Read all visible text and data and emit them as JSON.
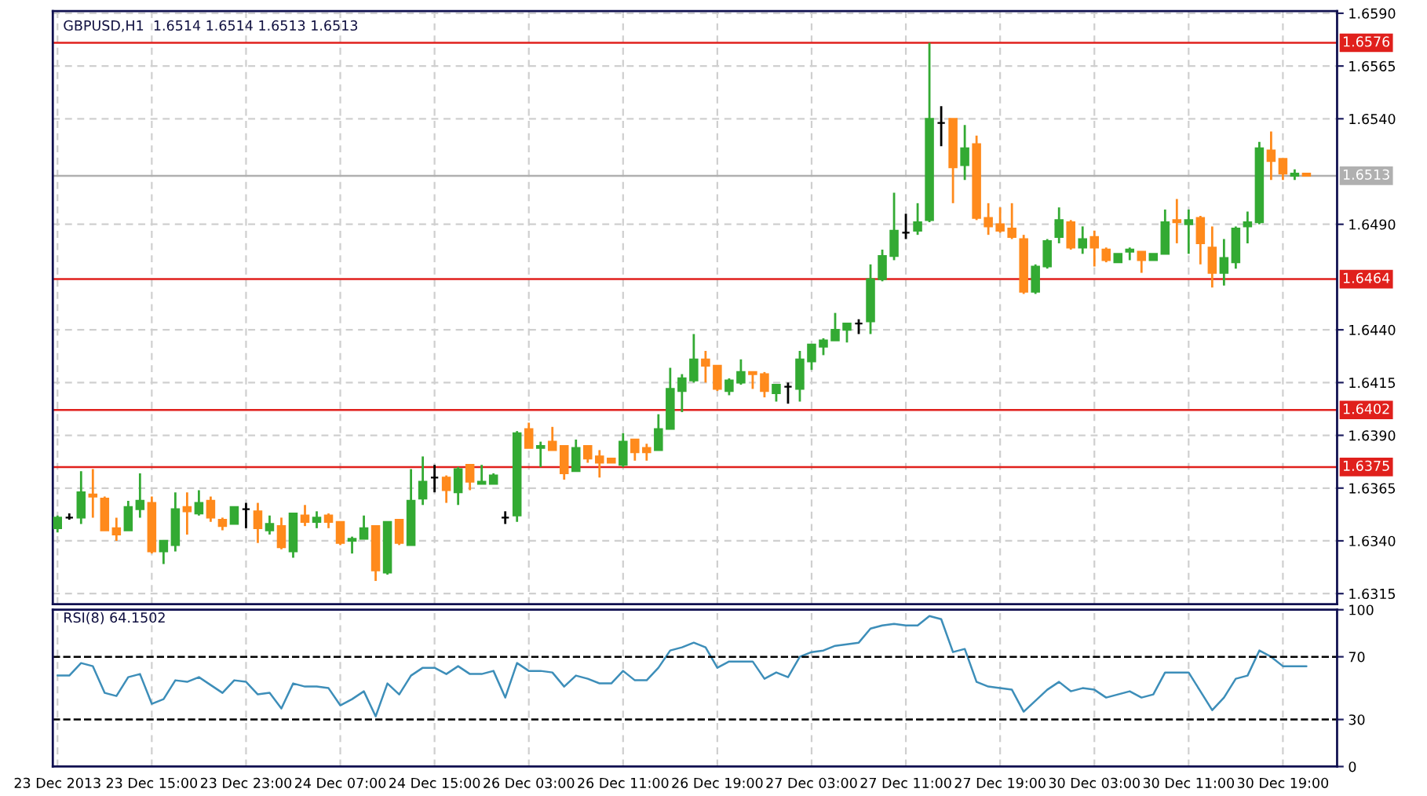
{
  "chart_data": [
    {
      "type": "candlestick",
      "title": "GBPUSD,H1  1.6514 1.6514 1.6513 1.6513",
      "categories": [
        null,
        null,
        null,
        null,
        null,
        null,
        null,
        null,
        null,
        null,
        null,
        null,
        null,
        null,
        null,
        null,
        null,
        null,
        null,
        null,
        null,
        null,
        null,
        null,
        null,
        null,
        null,
        null,
        null,
        null,
        null,
        null,
        null,
        null,
        null,
        null,
        null,
        null,
        null,
        null,
        null,
        null,
        null,
        null,
        null,
        null,
        null,
        null,
        null,
        null,
        null,
        null,
        null,
        null,
        null,
        null,
        null,
        null,
        null,
        null,
        null,
        null,
        null,
        null,
        null,
        null,
        null,
        null,
        null,
        null,
        null,
        null,
        null,
        null,
        null,
        null,
        null,
        null,
        null,
        null,
        null,
        null,
        null,
        null,
        null,
        null,
        null,
        null,
        null,
        null,
        null,
        null,
        null,
        null,
        null,
        null,
        null,
        null,
        null,
        null,
        null,
        null,
        null,
        null,
        null,
        null,
        null
      ],
      "ohlc": [
        [
          1.6346,
          1.6352,
          1.6344,
          1.6351
        ],
        [
          1.6351,
          1.6353,
          1.635,
          1.6351
        ],
        [
          1.6351,
          1.6373,
          1.6348,
          1.6363
        ],
        [
          1.6362,
          1.6374,
          1.6351,
          1.6361
        ],
        [
          1.636,
          1.6361,
          1.6345,
          1.6345
        ],
        [
          1.6346,
          1.6351,
          1.634,
          1.6343
        ],
        [
          1.6345,
          1.6359,
          1.6345,
          1.6356
        ],
        [
          1.6355,
          1.6372,
          1.6351,
          1.6359
        ],
        [
          1.6358,
          1.6361,
          1.6334,
          1.6335
        ],
        [
          1.6335,
          1.634,
          1.6329,
          1.634
        ],
        [
          1.6338,
          1.6363,
          1.6335,
          1.6355
        ],
        [
          1.6356,
          1.6363,
          1.6343,
          1.6354
        ],
        [
          1.6353,
          1.6364,
          1.6352,
          1.6358
        ],
        [
          1.6359,
          1.6361,
          1.6349,
          1.6351
        ],
        [
          1.635,
          1.6351,
          1.6345,
          1.6347
        ],
        [
          1.6348,
          1.6356,
          1.6348,
          1.6356
        ],
        [
          1.6355,
          1.6358,
          1.6346,
          1.6355
        ],
        [
          1.6354,
          1.6358,
          1.6339,
          1.6346
        ],
        [
          1.6345,
          1.6352,
          1.6343,
          1.6348
        ],
        [
          1.6347,
          1.6351,
          1.6336,
          1.6337
        ],
        [
          1.6335,
          1.6353,
          1.6332,
          1.6353
        ],
        [
          1.6352,
          1.6357,
          1.6347,
          1.6349
        ],
        [
          1.6349,
          1.6354,
          1.6346,
          1.6351
        ],
        [
          1.6352,
          1.6353,
          1.6346,
          1.6349
        ],
        [
          1.6349,
          1.6349,
          1.6338,
          1.6339
        ],
        [
          1.634,
          1.6342,
          1.6334,
          1.6341
        ],
        [
          1.6341,
          1.6352,
          1.6341,
          1.6346
        ],
        [
          1.6347,
          1.6347,
          1.6321,
          1.6326
        ],
        [
          1.6325,
          1.6349,
          1.6324,
          1.6349
        ],
        [
          1.635,
          1.635,
          1.6338,
          1.6339
        ],
        [
          1.6338,
          1.6374,
          1.6338,
          1.6359
        ],
        [
          1.636,
          1.638,
          1.6357,
          1.6368
        ],
        [
          1.637,
          1.6376,
          1.6363,
          1.637
        ],
        [
          1.637,
          1.6371,
          1.6358,
          1.6364
        ],
        [
          1.6363,
          1.6375,
          1.6357,
          1.6374
        ],
        [
          1.6376,
          1.6376,
          1.6364,
          1.6368
        ],
        [
          1.6367,
          1.6376,
          1.6367,
          1.6368
        ],
        [
          1.6367,
          1.6372,
          1.6367,
          1.6371
        ],
        [
          1.6351,
          1.6354,
          1.6348,
          1.6351
        ],
        [
          1.6352,
          1.6392,
          1.6349,
          1.6391
        ],
        [
          1.6393,
          1.6396,
          1.6384,
          1.6384
        ],
        [
          1.6384,
          1.6387,
          1.6375,
          1.6385
        ],
        [
          1.6387,
          1.6394,
          1.6383,
          1.6383
        ],
        [
          1.6385,
          1.6385,
          1.6369,
          1.6372
        ],
        [
          1.6373,
          1.6388,
          1.6373,
          1.6384
        ],
        [
          1.6385,
          1.6385,
          1.6377,
          1.6379
        ],
        [
          1.638,
          1.6383,
          1.637,
          1.6377
        ],
        [
          1.6379,
          1.6379,
          1.6377,
          1.6377
        ],
        [
          1.6376,
          1.6391,
          1.6375,
          1.6387
        ],
        [
          1.6388,
          1.6388,
          1.6378,
          1.6382
        ],
        [
          1.6384,
          1.6386,
          1.6378,
          1.6382
        ],
        [
          1.6383,
          1.64,
          1.6383,
          1.6393
        ],
        [
          1.6393,
          1.6422,
          1.6393,
          1.6412
        ],
        [
          1.6411,
          1.6419,
          1.6401,
          1.6417
        ],
        [
          1.6416,
          1.6438,
          1.6415,
          1.6426
        ],
        [
          1.6426,
          1.643,
          1.6415,
          1.6423
        ],
        [
          1.6423,
          1.6423,
          1.6411,
          1.6412
        ],
        [
          1.6411,
          1.6417,
          1.6409,
          1.6416
        ],
        [
          1.6415,
          1.6426,
          1.6414,
          1.642
        ],
        [
          1.642,
          1.642,
          1.6412,
          1.6419
        ],
        [
          1.6419,
          1.642,
          1.6408,
          1.6411
        ],
        [
          1.641,
          1.6414,
          1.6406,
          1.6414
        ],
        [
          1.6413,
          1.6415,
          1.6405,
          1.6413
        ],
        [
          1.6412,
          1.643,
          1.6406,
          1.6426
        ],
        [
          1.6425,
          1.6433,
          1.6421,
          1.6433
        ],
        [
          1.6432,
          1.6436,
          1.6428,
          1.6435
        ],
        [
          1.6435,
          1.6448,
          1.6435,
          1.644
        ],
        [
          1.644,
          1.6443,
          1.6434,
          1.6443
        ],
        [
          1.6443,
          1.6445,
          1.6438,
          1.6443
        ],
        [
          1.6444,
          1.6471,
          1.6438,
          1.6464
        ],
        [
          1.6464,
          1.6478,
          1.6463,
          1.6475
        ],
        [
          1.6475,
          1.6505,
          1.6473,
          1.6487
        ],
        [
          1.6486,
          1.6495,
          1.6483,
          1.6486
        ],
        [
          1.6487,
          1.65,
          1.6485,
          1.6491
        ],
        [
          1.6492,
          1.6576,
          1.6491,
          1.654
        ],
        [
          1.6538,
          1.6546,
          1.6527,
          1.6538
        ],
        [
          1.654,
          1.654,
          1.65,
          1.6517
        ],
        [
          1.6518,
          1.6537,
          1.6511,
          1.6526
        ],
        [
          1.6528,
          1.6532,
          1.6492,
          1.6493
        ],
        [
          1.6493,
          1.65,
          1.6485,
          1.6489
        ],
        [
          1.649,
          1.6498,
          1.6486,
          1.6487
        ],
        [
          1.6488,
          1.65,
          1.6483,
          1.6484
        ],
        [
          1.6483,
          1.6485,
          1.6457,
          1.6458
        ],
        [
          1.6458,
          1.6471,
          1.6457,
          1.647
        ],
        [
          1.647,
          1.6483,
          1.6469,
          1.6482
        ],
        [
          1.6484,
          1.6498,
          1.6481,
          1.6492
        ],
        [
          1.6491,
          1.6492,
          1.6478,
          1.6479
        ],
        [
          1.6479,
          1.6489,
          1.6476,
          1.6483
        ],
        [
          1.6484,
          1.6487,
          1.647,
          1.6479
        ],
        [
          1.6478,
          1.6479,
          1.6472,
          1.6473
        ],
        [
          1.6472,
          1.6476,
          1.6472,
          1.6476
        ],
        [
          1.6477,
          1.6479,
          1.6473,
          1.6478
        ],
        [
          1.6477,
          1.6477,
          1.6467,
          1.6473
        ],
        [
          1.6473,
          1.6476,
          1.6473,
          1.6476
        ],
        [
          1.6476,
          1.6497,
          1.6476,
          1.6491
        ],
        [
          1.6492,
          1.6502,
          1.6481,
          1.6491
        ],
        [
          1.649,
          1.6497,
          1.6476,
          1.6492
        ],
        [
          1.6493,
          1.6494,
          1.6471,
          1.6481
        ],
        [
          1.6479,
          1.6489,
          1.646,
          1.6467
        ],
        [
          1.6467,
          1.6483,
          1.6461,
          1.6474
        ],
        [
          1.6472,
          1.6489,
          1.6469,
          1.6488
        ],
        [
          1.6489,
          1.6496,
          1.6481,
          1.6491
        ],
        [
          1.6491,
          1.6529,
          1.649,
          1.6526
        ],
        [
          1.6525,
          1.6534,
          1.6511,
          1.652
        ],
        [
          1.6521,
          1.6521,
          1.6511,
          1.6514
        ],
        [
          1.6513,
          1.6516,
          1.6511,
          1.6514
        ],
        [
          1.6514,
          1.6514,
          1.6513,
          1.6513
        ]
      ],
      "colors": [
        "#33aa33",
        "#000000",
        "#33aa33",
        "#ff8a1c",
        "#ff8a1c",
        "#ff8a1c",
        "#33aa33",
        "#33aa33",
        "#ff8a1c",
        "#33aa33",
        "#33aa33",
        "#ff8a1c",
        "#33aa33",
        "#ff8a1c",
        "#ff8a1c",
        "#33aa33",
        "#000000",
        "#ff8a1c",
        "#33aa33",
        "#ff8a1c",
        "#33aa33",
        "#ff8a1c",
        "#33aa33",
        "#ff8a1c",
        "#ff8a1c",
        "#33aa33",
        "#33aa33",
        "#ff8a1c",
        "#33aa33",
        "#ff8a1c",
        "#33aa33",
        "#33aa33",
        "#000000",
        "#ff8a1c",
        "#33aa33",
        "#ff8a1c",
        "#33aa33",
        "#33aa33",
        "#000000",
        "#33aa33",
        "#ff8a1c",
        "#33aa33",
        "#ff8a1c",
        "#ff8a1c",
        "#33aa33",
        "#ff8a1c",
        "#ff8a1c",
        "#ff8a1c",
        "#33aa33",
        "#ff8a1c",
        "#ff8a1c",
        "#33aa33",
        "#33aa33",
        "#33aa33",
        "#33aa33",
        "#ff8a1c",
        "#ff8a1c",
        "#33aa33",
        "#33aa33",
        "#ff8a1c",
        "#ff8a1c",
        "#33aa33",
        "#000000",
        "#33aa33",
        "#33aa33",
        "#33aa33",
        "#33aa33",
        "#33aa33",
        "#000000",
        "#33aa33",
        "#33aa33",
        "#33aa33",
        "#000000",
        "#33aa33",
        "#33aa33",
        "#000000",
        "#ff8a1c",
        "#33aa33",
        "#ff8a1c",
        "#ff8a1c",
        "#ff8a1c",
        "#ff8a1c",
        "#ff8a1c",
        "#33aa33",
        "#33aa33",
        "#33aa33",
        "#ff8a1c",
        "#33aa33",
        "#ff8a1c",
        "#ff8a1c",
        "#33aa33",
        "#33aa33",
        "#ff8a1c",
        "#33aa33",
        "#33aa33",
        "#ff8a1c",
        "#33aa33",
        "#ff8a1c",
        "#ff8a1c",
        "#33aa33",
        "#33aa33",
        "#33aa33",
        "#33aa33",
        "#ff8a1c",
        "#ff8a1c",
        "#33aa33",
        "#ff8a1c"
      ],
      "ylim": [
        1.631,
        1.6591
      ],
      "yticks": [
        {
          "value": 1.6315,
          "label": "1.6315"
        },
        {
          "value": 1.634,
          "label": "1.6340"
        },
        {
          "value": 1.6365,
          "label": "1.6365"
        },
        {
          "value": 1.639,
          "label": "1.6390"
        },
        {
          "value": 1.6415,
          "label": "1.6415"
        },
        {
          "value": 1.644,
          "label": "1.6440"
        },
        {
          "value": 1.649,
          "label": "1.6490"
        },
        {
          "value": 1.654,
          "label": "1.6540"
        },
        {
          "value": 1.6565,
          "label": "1.6565"
        },
        {
          "value": 1.659,
          "label": "1.6590"
        }
      ],
      "ref_lines": [
        {
          "axis": "y",
          "value": 1.6576,
          "label": "1.6576",
          "color": "#e0201c"
        },
        {
          "axis": "y",
          "value": 1.6464,
          "label": "1.6464",
          "color": "#e0201c"
        },
        {
          "axis": "y",
          "value": 1.6402,
          "label": "1.6402",
          "color": "#e0201c"
        },
        {
          "axis": "y",
          "value": 1.6375,
          "label": "1.6375",
          "color": "#e0201c"
        },
        {
          "axis": "y",
          "value": 1.6513,
          "label": "1.6513",
          "color": "#b0b0b0"
        }
      ],
      "grid": true
    },
    {
      "type": "line",
      "title": "RSI(8) 64.1502",
      "categories": [
        "23 Dec 2013",
        null,
        null,
        null,
        null,
        null,
        null,
        null,
        "23 Dec 15:00",
        null,
        null,
        null,
        null,
        null,
        null,
        null,
        "23 Dec 23:00",
        null,
        null,
        null,
        null,
        null,
        null,
        null,
        "24 Dec 07:00",
        null,
        null,
        null,
        null,
        null,
        null,
        null,
        "24 Dec 15:00",
        null,
        null,
        null,
        null,
        null,
        null,
        null,
        "26 Dec 03:00",
        null,
        null,
        null,
        null,
        null,
        null,
        null,
        "26 Dec 11:00",
        null,
        null,
        null,
        null,
        null,
        null,
        null,
        "26 Dec 19:00",
        null,
        null,
        null,
        null,
        null,
        null,
        null,
        "27 Dec 03:00",
        null,
        null,
        null,
        null,
        null,
        null,
        null,
        "27 Dec 11:00",
        null,
        null,
        null,
        null,
        null,
        null,
        null,
        "27 Dec 19:00",
        null,
        null,
        null,
        null,
        null,
        null,
        null,
        "30 Dec 03:00",
        null,
        null,
        null,
        null,
        null,
        null,
        null,
        "30 Dec 11:00",
        null,
        null,
        null,
        null,
        null,
        null,
        null,
        "30 Dec 19:00",
        null,
        null
      ],
      "series": [
        {
          "color": "#3d8eb9",
          "values": [
            58,
            58,
            66,
            64,
            47,
            45,
            57,
            59,
            40,
            43,
            55,
            54,
            57,
            52,
            47,
            55,
            54,
            46,
            47,
            37,
            53,
            51,
            51,
            50,
            39,
            43,
            48,
            32,
            53,
            46,
            58,
            63,
            63,
            59,
            64,
            59,
            59,
            61,
            44,
            66,
            61,
            61,
            60,
            51,
            58,
            56,
            53,
            53,
            61,
            55,
            55,
            63,
            74,
            76,
            79,
            76,
            63,
            67,
            67,
            67,
            56,
            60,
            57,
            70,
            73,
            74,
            77,
            78,
            79,
            88,
            90,
            91,
            90,
            90,
            96,
            94,
            73,
            75,
            54,
            51,
            50,
            49,
            35,
            42,
            49,
            54,
            48,
            50,
            49,
            44,
            46,
            48,
            44,
            46,
            60,
            60,
            60,
            48,
            36,
            44,
            56,
            58,
            74,
            70,
            64,
            64,
            64
          ]
        }
      ],
      "ylim": [
        0,
        100
      ],
      "yticks": [
        0,
        30,
        70,
        100
      ],
      "ref_lines": [
        {
          "axis": "y",
          "value": 70,
          "color": "#000000",
          "line_style": "dashed"
        },
        {
          "axis": "y",
          "value": 30,
          "color": "#000000",
          "line_style": "dashed"
        }
      ],
      "grid": "x"
    }
  ]
}
